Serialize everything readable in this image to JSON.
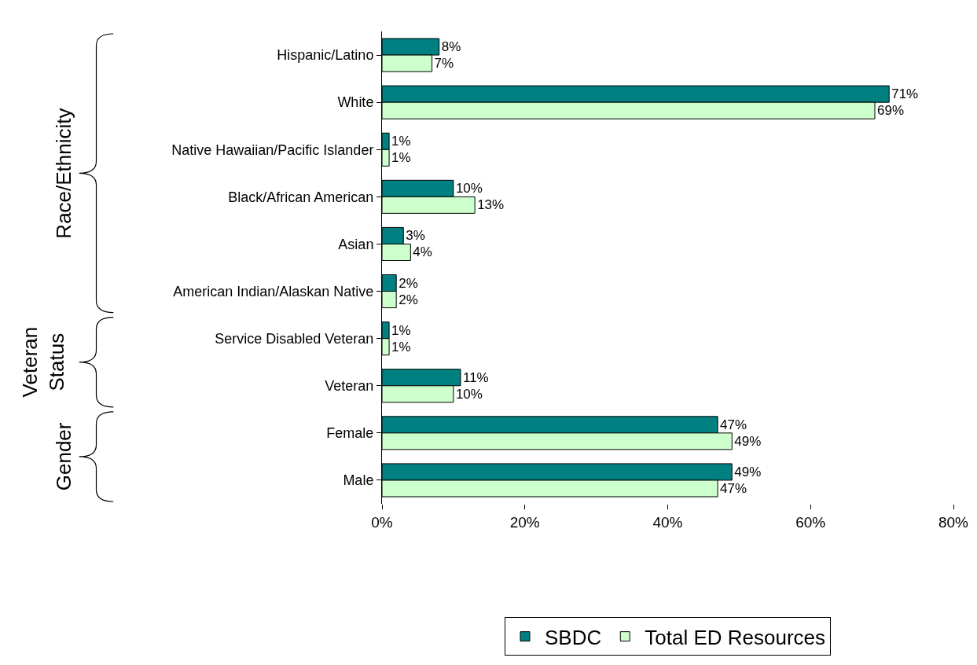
{
  "chart_data": {
    "type": "bar",
    "orientation": "horizontal",
    "categories": [
      "Hispanic/Latino",
      "White",
      "Native Hawaiian/Pacific Islander",
      "Black/African American",
      "Asian",
      "American Indian/Alaskan Native",
      "Service Disabled Veteran",
      "Veteran",
      "Female",
      "Male"
    ],
    "series": [
      {
        "name": "SBDC",
        "color": "#008080",
        "values": [
          8,
          71,
          1,
          10,
          3,
          2,
          1,
          11,
          47,
          49
        ],
        "value_labels": [
          "8%",
          "71%",
          "1%",
          "10%",
          "3%",
          "2%",
          "1%",
          "11%",
          "47%",
          "49%"
        ]
      },
      {
        "name": "Total ED Resources",
        "color": "#ccffcc",
        "values": [
          7,
          69,
          1,
          13,
          4,
          2,
          1,
          10,
          49,
          47
        ],
        "value_labels": [
          "7%",
          "69%",
          "1%",
          "13%",
          "4%",
          "2%",
          "1%",
          "10%",
          "49%",
          "47%"
        ]
      }
    ],
    "xlim": [
      0,
      80
    ],
    "xticks": [
      {
        "value": 0,
        "label": "0%"
      },
      {
        "value": 20,
        "label": "20%"
      },
      {
        "value": 40,
        "label": "40%"
      },
      {
        "value": 60,
        "label": "60%"
      },
      {
        "value": 80,
        "label": "80%"
      }
    ],
    "annotations": [
      "Race/Ethnicity",
      "Veteran\nStatus",
      "Gender"
    ],
    "legend": "bottom"
  }
}
